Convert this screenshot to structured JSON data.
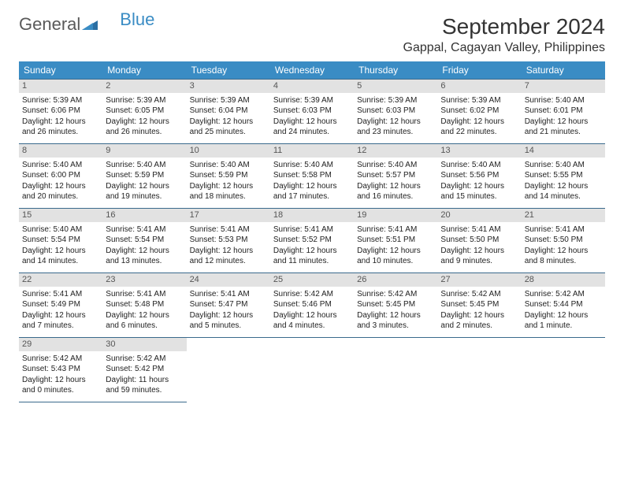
{
  "brand": {
    "part1": "General",
    "part2": "Blue"
  },
  "title": "September 2024",
  "location": "Gappal, Cagayan Valley, Philippines",
  "colors": {
    "header_bg": "#3a8cc4",
    "header_fg": "#ffffff",
    "daynum_bg": "#e2e2e2",
    "border": "#3a6a8c",
    "text": "#222222",
    "logo_gray": "#5a5a5a",
    "logo_blue": "#3a8cc4"
  },
  "weekdays": [
    "Sunday",
    "Monday",
    "Tuesday",
    "Wednesday",
    "Thursday",
    "Friday",
    "Saturday"
  ],
  "weeks": [
    [
      {
        "n": "1",
        "sr": "Sunrise: 5:39 AM",
        "ss": "Sunset: 6:06 PM",
        "d1": "Daylight: 12 hours",
        "d2": "and 26 minutes."
      },
      {
        "n": "2",
        "sr": "Sunrise: 5:39 AM",
        "ss": "Sunset: 6:05 PM",
        "d1": "Daylight: 12 hours",
        "d2": "and 26 minutes."
      },
      {
        "n": "3",
        "sr": "Sunrise: 5:39 AM",
        "ss": "Sunset: 6:04 PM",
        "d1": "Daylight: 12 hours",
        "d2": "and 25 minutes."
      },
      {
        "n": "4",
        "sr": "Sunrise: 5:39 AM",
        "ss": "Sunset: 6:03 PM",
        "d1": "Daylight: 12 hours",
        "d2": "and 24 minutes."
      },
      {
        "n": "5",
        "sr": "Sunrise: 5:39 AM",
        "ss": "Sunset: 6:03 PM",
        "d1": "Daylight: 12 hours",
        "d2": "and 23 minutes."
      },
      {
        "n": "6",
        "sr": "Sunrise: 5:39 AM",
        "ss": "Sunset: 6:02 PM",
        "d1": "Daylight: 12 hours",
        "d2": "and 22 minutes."
      },
      {
        "n": "7",
        "sr": "Sunrise: 5:40 AM",
        "ss": "Sunset: 6:01 PM",
        "d1": "Daylight: 12 hours",
        "d2": "and 21 minutes."
      }
    ],
    [
      {
        "n": "8",
        "sr": "Sunrise: 5:40 AM",
        "ss": "Sunset: 6:00 PM",
        "d1": "Daylight: 12 hours",
        "d2": "and 20 minutes."
      },
      {
        "n": "9",
        "sr": "Sunrise: 5:40 AM",
        "ss": "Sunset: 5:59 PM",
        "d1": "Daylight: 12 hours",
        "d2": "and 19 minutes."
      },
      {
        "n": "10",
        "sr": "Sunrise: 5:40 AM",
        "ss": "Sunset: 5:59 PM",
        "d1": "Daylight: 12 hours",
        "d2": "and 18 minutes."
      },
      {
        "n": "11",
        "sr": "Sunrise: 5:40 AM",
        "ss": "Sunset: 5:58 PM",
        "d1": "Daylight: 12 hours",
        "d2": "and 17 minutes."
      },
      {
        "n": "12",
        "sr": "Sunrise: 5:40 AM",
        "ss": "Sunset: 5:57 PM",
        "d1": "Daylight: 12 hours",
        "d2": "and 16 minutes."
      },
      {
        "n": "13",
        "sr": "Sunrise: 5:40 AM",
        "ss": "Sunset: 5:56 PM",
        "d1": "Daylight: 12 hours",
        "d2": "and 15 minutes."
      },
      {
        "n": "14",
        "sr": "Sunrise: 5:40 AM",
        "ss": "Sunset: 5:55 PM",
        "d1": "Daylight: 12 hours",
        "d2": "and 14 minutes."
      }
    ],
    [
      {
        "n": "15",
        "sr": "Sunrise: 5:40 AM",
        "ss": "Sunset: 5:54 PM",
        "d1": "Daylight: 12 hours",
        "d2": "and 14 minutes."
      },
      {
        "n": "16",
        "sr": "Sunrise: 5:41 AM",
        "ss": "Sunset: 5:54 PM",
        "d1": "Daylight: 12 hours",
        "d2": "and 13 minutes."
      },
      {
        "n": "17",
        "sr": "Sunrise: 5:41 AM",
        "ss": "Sunset: 5:53 PM",
        "d1": "Daylight: 12 hours",
        "d2": "and 12 minutes."
      },
      {
        "n": "18",
        "sr": "Sunrise: 5:41 AM",
        "ss": "Sunset: 5:52 PM",
        "d1": "Daylight: 12 hours",
        "d2": "and 11 minutes."
      },
      {
        "n": "19",
        "sr": "Sunrise: 5:41 AM",
        "ss": "Sunset: 5:51 PM",
        "d1": "Daylight: 12 hours",
        "d2": "and 10 minutes."
      },
      {
        "n": "20",
        "sr": "Sunrise: 5:41 AM",
        "ss": "Sunset: 5:50 PM",
        "d1": "Daylight: 12 hours",
        "d2": "and 9 minutes."
      },
      {
        "n": "21",
        "sr": "Sunrise: 5:41 AM",
        "ss": "Sunset: 5:50 PM",
        "d1": "Daylight: 12 hours",
        "d2": "and 8 minutes."
      }
    ],
    [
      {
        "n": "22",
        "sr": "Sunrise: 5:41 AM",
        "ss": "Sunset: 5:49 PM",
        "d1": "Daylight: 12 hours",
        "d2": "and 7 minutes."
      },
      {
        "n": "23",
        "sr": "Sunrise: 5:41 AM",
        "ss": "Sunset: 5:48 PM",
        "d1": "Daylight: 12 hours",
        "d2": "and 6 minutes."
      },
      {
        "n": "24",
        "sr": "Sunrise: 5:41 AM",
        "ss": "Sunset: 5:47 PM",
        "d1": "Daylight: 12 hours",
        "d2": "and 5 minutes."
      },
      {
        "n": "25",
        "sr": "Sunrise: 5:42 AM",
        "ss": "Sunset: 5:46 PM",
        "d1": "Daylight: 12 hours",
        "d2": "and 4 minutes."
      },
      {
        "n": "26",
        "sr": "Sunrise: 5:42 AM",
        "ss": "Sunset: 5:45 PM",
        "d1": "Daylight: 12 hours",
        "d2": "and 3 minutes."
      },
      {
        "n": "27",
        "sr": "Sunrise: 5:42 AM",
        "ss": "Sunset: 5:45 PM",
        "d1": "Daylight: 12 hours",
        "d2": "and 2 minutes."
      },
      {
        "n": "28",
        "sr": "Sunrise: 5:42 AM",
        "ss": "Sunset: 5:44 PM",
        "d1": "Daylight: 12 hours",
        "d2": "and 1 minute."
      }
    ],
    [
      {
        "n": "29",
        "sr": "Sunrise: 5:42 AM",
        "ss": "Sunset: 5:43 PM",
        "d1": "Daylight: 12 hours",
        "d2": "and 0 minutes."
      },
      {
        "n": "30",
        "sr": "Sunrise: 5:42 AM",
        "ss": "Sunset: 5:42 PM",
        "d1": "Daylight: 11 hours",
        "d2": "and 59 minutes."
      },
      null,
      null,
      null,
      null,
      null
    ]
  ]
}
